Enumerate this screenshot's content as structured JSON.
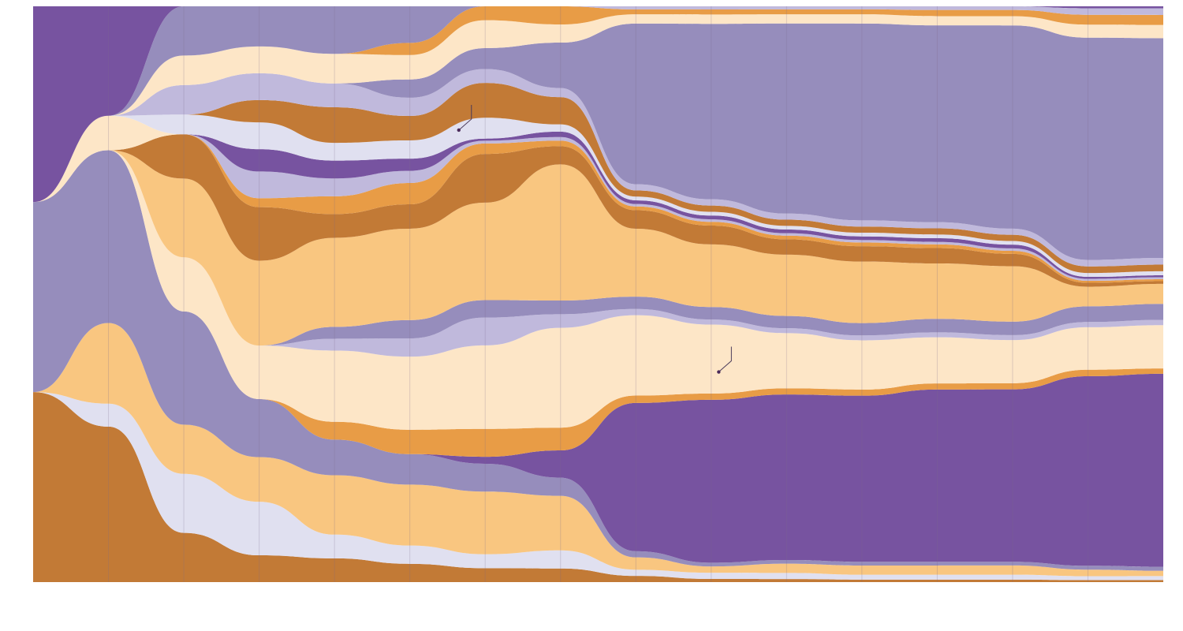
{
  "chart_data": {
    "type": "area",
    "subtype": "streamgraph-alluvial",
    "title": "",
    "xlabel": "",
    "ylabel": "",
    "x": [
      0,
      1,
      2,
      3,
      4,
      5,
      6,
      7,
      8,
      9,
      10,
      11,
      12,
      13,
      14,
      15
    ],
    "ylim": [
      0,
      1
    ],
    "grid": "vertical",
    "legend": "none",
    "palette": {
      "dark_orange": "#c27a36",
      "orange": "#e89c46",
      "light_orange": "#f9c680",
      "cream": "#fde6c7",
      "lavender": "#e0e0f0",
      "light_purple": "#c0b9dc",
      "medium_purple": "#968dbc",
      "dark_purple": "#7753a0",
      "deep_purple": "#5b2a7e",
      "yellow": "#f2e06a"
    },
    "series": [
      {
        "color_key": "dark_orange",
        "values": [
          0.33,
          0.27,
          0.1,
          0.06,
          0.04,
          0.03,
          0.02,
          0.015,
          0.01,
          0.005,
          0.005,
          0.004,
          0.004,
          0.004,
          0.003,
          0.003
        ]
      },
      {
        "color_key": "lavender",
        "values": [
          0.0,
          0.04,
          0.12,
          0.12,
          0.04,
          0.03,
          0.02,
          0.02,
          0.01,
          0.01,
          0.01,
          0.008,
          0.008,
          0.008,
          0.006,
          0.006
        ]
      },
      {
        "color_key": "light_orange",
        "values": [
          0.0,
          0.14,
          0.1,
          0.1,
          0.1,
          0.1,
          0.09,
          0.06,
          0.02,
          0.01,
          0.015,
          0.015,
          0.015,
          0.015,
          0.01,
          0.008
        ]
      },
      {
        "color_key": "medium_purple",
        "values": [
          0.33,
          0.3,
          0.23,
          0.13,
          0.06,
          0.05,
          0.04,
          0.02,
          0.01,
          0.006,
          0.006,
          0.006,
          0.006,
          0.006,
          0.006,
          0.006
        ]
      },
      {
        "color_key": "dark_purple",
        "values": [
          0.0,
          0.0,
          0.0,
          0.0,
          0.0,
          0.0,
          0.01,
          0.03,
          0.24,
          0.26,
          0.27,
          0.27,
          0.28,
          0.28,
          0.29,
          0.29
        ]
      },
      {
        "color_key": "orange",
        "values": [
          0.0,
          0.0,
          0.0,
          0.0,
          0.03,
          0.04,
          0.04,
          0.025,
          0.012,
          0.01,
          0.01,
          0.01,
          0.01,
          0.01,
          0.01,
          0.008
        ]
      },
      {
        "color_key": "cream",
        "values": [
          0.0,
          0.0,
          0.11,
          0.12,
          0.12,
          0.12,
          0.12,
          0.11,
          0.13,
          0.11,
          0.09,
          0.08,
          0.075,
          0.07,
          0.065,
          0.065
        ]
      },
      {
        "color_key": "light_purple",
        "values": [
          0.0,
          0.0,
          0.0,
          0.0,
          0.02,
          0.03,
          0.04,
          0.015,
          0.01,
          0.008,
          0.008,
          0.008,
          0.008,
          0.008,
          0.008,
          0.008
        ]
      },
      {
        "color_key": "medium_purple",
        "values": [
          0.0,
          0.0,
          0.0,
          0.0,
          0.02,
          0.03,
          0.025,
          0.015,
          0.02,
          0.02,
          0.02,
          0.02,
          0.022,
          0.022,
          0.024,
          0.024
        ]
      },
      {
        "color_key": "light_orange",
        "values": [
          0.0,
          0.0,
          0.16,
          0.19,
          0.15,
          0.15,
          0.14,
          0.15,
          0.11,
          0.1,
          0.1,
          0.1,
          0.09,
          0.09,
          0.03,
          0.03
        ]
      },
      {
        "color_key": "dark_orange",
        "values": [
          0.0,
          0.0,
          0.09,
          0.12,
          0.04,
          0.04,
          0.07,
          0.02,
          0.03,
          0.03,
          0.025,
          0.025,
          0.025,
          0.02,
          0.006,
          0.004
        ]
      },
      {
        "color_key": "orange",
        "values": [
          0.0,
          0.0,
          0.0,
          0.02,
          0.03,
          0.035,
          0.015,
          0.006,
          0.006,
          0.006,
          0.006,
          0.006,
          0.006,
          0.005,
          0.003,
          0.003
        ]
      },
      {
        "color_key": "light_purple",
        "values": [
          0.0,
          0.0,
          0.0,
          0.06,
          0.03,
          0.02,
          0.004,
          0.004,
          0.004,
          0.004,
          0.004,
          0.004,
          0.004,
          0.004,
          0.003,
          0.003
        ]
      },
      {
        "color_key": "dark_purple",
        "values": [
          0.0,
          0.0,
          0.0,
          0.05,
          0.03,
          0.02,
          0.003,
          0.006,
          0.006,
          0.006,
          0.006,
          0.006,
          0.006,
          0.006,
          0.003,
          0.003
        ]
      },
      {
        "color_key": "cream",
        "values": [
          0.0,
          0.06,
          0.0,
          0.0,
          0.0,
          0.0,
          0.0,
          0.0,
          0.0,
          0.0,
          0.0,
          0.0,
          0.0,
          0.0,
          0.0,
          0.0
        ]
      },
      {
        "color_key": "lavender",
        "values": [
          0.0,
          0.0,
          0.04,
          0.06,
          0.03,
          0.03,
          0.03,
          0.008,
          0.006,
          0.006,
          0.006,
          0.006,
          0.006,
          0.006,
          0.006,
          0.006
        ]
      },
      {
        "color_key": "dark_orange",
        "values": [
          0.0,
          0.0,
          0.0,
          0.05,
          0.06,
          0.04,
          0.05,
          0.03,
          0.01,
          0.01,
          0.01,
          0.01,
          0.01,
          0.01,
          0.01,
          0.01
        ]
      },
      {
        "color_key": "light_purple",
        "values": [
          0.0,
          0.0,
          0.06,
          0.06,
          0.04,
          0.03,
          0.02,
          0.01,
          0.01,
          0.01,
          0.01,
          0.01,
          0.01,
          0.01,
          0.01,
          0.01
        ]
      },
      {
        "color_key": "medium_purple",
        "values": [
          0.0,
          0.0,
          0.0,
          0.0,
          0.0,
          0.03,
          0.03,
          0.05,
          0.26,
          0.28,
          0.31,
          0.32,
          0.32,
          0.33,
          0.34,
          0.33
        ]
      },
      {
        "color_key": "cream",
        "values": [
          0.0,
          0.0,
          0.06,
          0.06,
          0.05,
          0.04,
          0.04,
          0.02,
          0.015,
          0.015,
          0.015,
          0.015,
          0.015,
          0.015,
          0.02,
          0.02
        ]
      },
      {
        "color_key": "orange",
        "values": [
          0.0,
          0.0,
          0.0,
          0.0,
          0.0,
          0.02,
          0.02,
          0.02,
          0.008,
          0.008,
          0.008,
          0.008,
          0.01,
          0.01,
          0.015,
          0.015
        ]
      },
      {
        "color_key": "medium_purple",
        "values": [
          0.0,
          0.0,
          0.1,
          0.09,
          0.08,
          0.06,
          0.0,
          0.0,
          0.0,
          0.0,
          0.0,
          0.0,
          0.0,
          0.0,
          0.0,
          0.0
        ]
      },
      {
        "color_key": "light_purple",
        "values": [
          0.0,
          0.0,
          0.0,
          0.0,
          0.0,
          0.0,
          0.0,
          0.0,
          0.005,
          0.005,
          0.005,
          0.005,
          0.006,
          0.006,
          0.01,
          0.01
        ]
      },
      {
        "color_key": "dark_purple",
        "values": [
          0.34,
          0.19,
          0.0,
          0.0,
          0.0,
          0.0,
          0.0,
          0.0,
          0.0,
          0.0,
          0.0,
          0.0,
          0.0,
          0.0,
          0.003,
          0.003
        ]
      }
    ],
    "annotations": [
      {
        "type": "callout",
        "at_x": 5.65,
        "at_y": 0.215
      },
      {
        "type": "callout",
        "at_x": 9.1,
        "at_y": 0.635
      }
    ]
  }
}
